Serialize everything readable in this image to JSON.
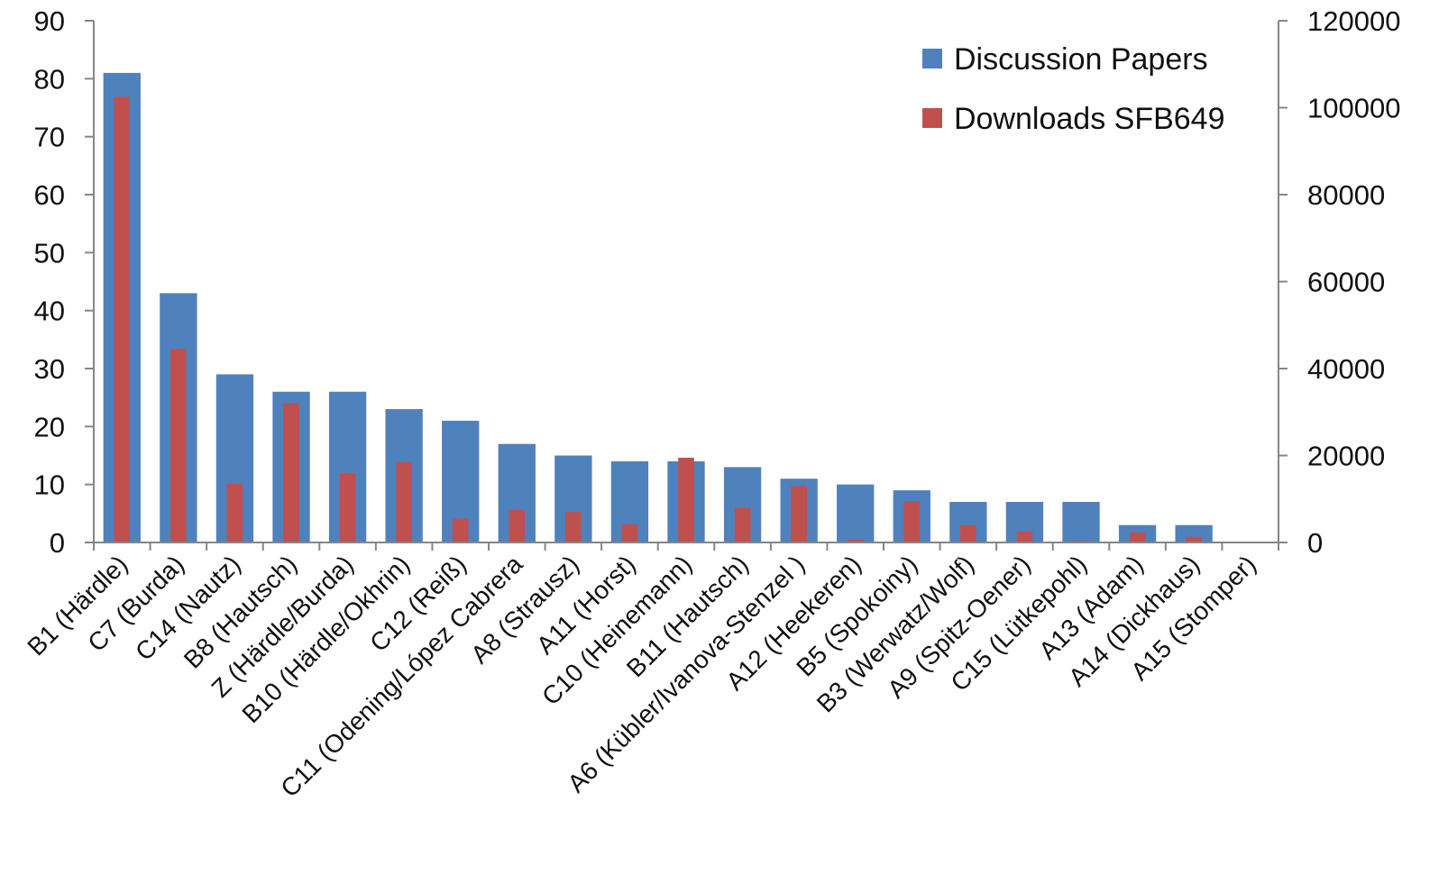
{
  "chart_data": {
    "type": "bar",
    "title": "",
    "xlabel": "",
    "ylabel": "",
    "y2label": "",
    "ylim": [
      0,
      90
    ],
    "y2lim": [
      0,
      120000
    ],
    "yticks": [
      "0",
      "10",
      "20",
      "30",
      "40",
      "50",
      "60",
      "70",
      "80",
      "90"
    ],
    "y2ticks": [
      "0",
      "20000",
      "40000",
      "60000",
      "80000",
      "100000",
      "120000"
    ],
    "legend_position": "top-right",
    "grid": false,
    "categories": [
      "B1 (Härdle)",
      "C7 (Burda)",
      "C14 (Nautz)",
      "B8 (Hautsch)",
      "Z (Härdle/Burda)",
      "B10 (Härdle/Okhrin)",
      "C12 (Reiß)",
      "C11 (Odening/López Cabrera",
      "A8 (Strausz)",
      "A11 (Horst)",
      "C10 (Heinemann)",
      "B11 (Hautsch)",
      "A6 (Kübler/Ivanova-Stenzel )",
      "A12 (Heekeren)",
      "B5 (Spokoiny)",
      "B3 (Werwatz/Wolf)",
      "A9 (Spitz-Oener)",
      "C15 (Lütkepohl)",
      "A13 (Adam)",
      "A14 (Dickhaus)",
      "A15 (Stomper)"
    ],
    "series": [
      {
        "name": "Discussion Papers",
        "axis": "left",
        "color": "#4F81BD",
        "values": [
          81,
          43,
          29,
          26,
          26,
          23,
          21,
          17,
          15,
          14,
          14,
          13,
          11,
          10,
          9,
          7,
          7,
          7,
          3,
          3,
          0
        ]
      },
      {
        "name": "Downloads SFB649",
        "axis": "right",
        "color": "#C0504D",
        "values": [
          102500,
          44500,
          13500,
          32000,
          16000,
          18500,
          5500,
          7500,
          7000,
          4200,
          19500,
          8000,
          13000,
          700,
          9500,
          4000,
          2500,
          300,
          2300,
          1300,
          0
        ]
      }
    ]
  }
}
